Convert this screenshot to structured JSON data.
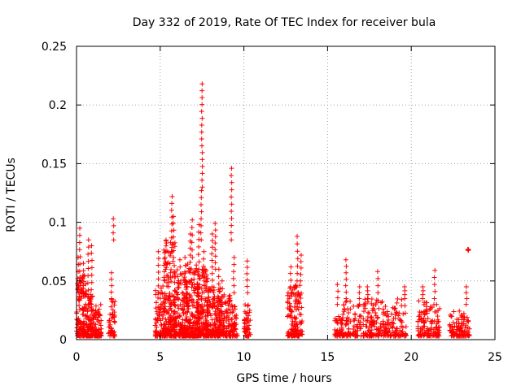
{
  "chart_data": {
    "type": "scatter",
    "title": "Day 332 of 2019, Rate Of TEC Index for receiver bula",
    "xlabel": "GPS time / hours",
    "ylabel": "ROTI / TECUs",
    "xlim": [
      0,
      25
    ],
    "ylim": [
      0,
      0.25
    ],
    "grid": true,
    "marker": "+",
    "color": "#ff0000",
    "xticks": [
      {
        "value": 0,
        "label": "0"
      },
      {
        "value": 5,
        "label": "5"
      },
      {
        "value": 10,
        "label": "10"
      },
      {
        "value": 15,
        "label": "15"
      },
      {
        "value": 20,
        "label": "20"
      },
      {
        "value": 25,
        "label": "25"
      }
    ],
    "yticks": [
      {
        "value": 0,
        "label": "0"
      },
      {
        "value": 0.05,
        "label": "0.05"
      },
      {
        "value": 0.1,
        "label": "0.1"
      },
      {
        "value": 0.15,
        "label": "0.15"
      },
      {
        "value": 0.2,
        "label": "0.2"
      },
      {
        "value": 0.25,
        "label": "0.25"
      }
    ],
    "clusters": [
      {
        "x0": 0.0,
        "x1": 0.6,
        "ymax": 0.055,
        "n": 130
      },
      {
        "x0": 0.55,
        "x1": 1.0,
        "ymax": 0.04,
        "n": 90
      },
      {
        "x0": 1.0,
        "x1": 1.5,
        "ymax": 0.03,
        "n": 70
      },
      {
        "x0": 1.9,
        "x1": 2.3,
        "ymax": 0.035,
        "n": 45
      },
      {
        "x0": 4.7,
        "x1": 5.3,
        "ymax": 0.05,
        "n": 90
      },
      {
        "x0": 5.2,
        "x1": 5.9,
        "ymax": 0.09,
        "n": 170
      },
      {
        "x0": 5.8,
        "x1": 6.6,
        "ymax": 0.06,
        "n": 170
      },
      {
        "x0": 6.5,
        "x1": 7.3,
        "ymax": 0.065,
        "n": 180
      },
      {
        "x0": 7.2,
        "x1": 7.9,
        "ymax": 0.06,
        "n": 170
      },
      {
        "x0": 7.8,
        "x1": 8.6,
        "ymax": 0.045,
        "n": 150
      },
      {
        "x0": 8.5,
        "x1": 9.2,
        "ymax": 0.04,
        "n": 110
      },
      {
        "x0": 9.2,
        "x1": 9.6,
        "ymax": 0.03,
        "n": 50
      },
      {
        "x0": 10.0,
        "x1": 10.4,
        "ymax": 0.03,
        "n": 45
      },
      {
        "x0": 12.6,
        "x1": 13.1,
        "ymax": 0.045,
        "n": 75
      },
      {
        "x0": 13.0,
        "x1": 13.5,
        "ymax": 0.05,
        "n": 70
      },
      {
        "x0": 15.4,
        "x1": 15.9,
        "ymax": 0.02,
        "n": 35
      },
      {
        "x0": 15.8,
        "x1": 16.4,
        "ymax": 0.035,
        "n": 50
      },
      {
        "x0": 16.5,
        "x1": 17.0,
        "ymax": 0.03,
        "n": 40
      },
      {
        "x0": 17.1,
        "x1": 17.7,
        "ymax": 0.035,
        "n": 55
      },
      {
        "x0": 17.6,
        "x1": 18.4,
        "ymax": 0.035,
        "n": 60
      },
      {
        "x0": 18.4,
        "x1": 19.0,
        "ymax": 0.03,
        "n": 50
      },
      {
        "x0": 19.0,
        "x1": 19.7,
        "ymax": 0.035,
        "n": 55
      },
      {
        "x0": 20.4,
        "x1": 21.0,
        "ymax": 0.035,
        "n": 65
      },
      {
        "x0": 21.0,
        "x1": 21.7,
        "ymax": 0.03,
        "n": 65
      },
      {
        "x0": 22.3,
        "x1": 22.9,
        "ymax": 0.025,
        "n": 55
      },
      {
        "x0": 22.9,
        "x1": 23.5,
        "ymax": 0.025,
        "n": 55
      }
    ],
    "spikes": [
      {
        "x": 0.1,
        "y0": 0.04,
        "y1": 0.07
      },
      {
        "x": 0.2,
        "y0": 0.04,
        "y1": 0.095
      },
      {
        "x": 0.4,
        "y0": 0.04,
        "y1": 0.065
      },
      {
        "x": 0.7,
        "y0": 0.03,
        "y1": 0.085
      },
      {
        "x": 0.9,
        "y0": 0.03,
        "y1": 0.08
      },
      {
        "x": 2.1,
        "y0": 0.035,
        "y1": 0.057
      },
      {
        "x": 2.2,
        "y0": 0.085,
        "y1": 0.103
      },
      {
        "x": 4.9,
        "y0": 0.04,
        "y1": 0.075
      },
      {
        "x": 5.3,
        "y0": 0.06,
        "y1": 0.075
      },
      {
        "x": 5.7,
        "y0": 0.075,
        "y1": 0.122
      },
      {
        "x": 5.8,
        "y0": 0.07,
        "y1": 0.105
      },
      {
        "x": 6.2,
        "y0": 0.05,
        "y1": 0.068
      },
      {
        "x": 6.5,
        "y0": 0.05,
        "y1": 0.07
      },
      {
        "x": 6.8,
        "y0": 0.06,
        "y1": 0.09
      },
      {
        "x": 6.9,
        "y0": 0.07,
        "y1": 0.102
      },
      {
        "x": 7.3,
        "y0": 0.06,
        "y1": 0.098
      },
      {
        "x": 7.45,
        "y0": 0.085,
        "y1": 0.127
      },
      {
        "x": 7.5,
        "y0": 0.13,
        "y1": 0.218
      },
      {
        "x": 7.6,
        "y0": 0.05,
        "y1": 0.075
      },
      {
        "x": 8.1,
        "y0": 0.045,
        "y1": 0.09
      },
      {
        "x": 8.3,
        "y0": 0.06,
        "y1": 0.099
      },
      {
        "x": 8.5,
        "y0": 0.035,
        "y1": 0.06
      },
      {
        "x": 8.7,
        "y0": 0.03,
        "y1": 0.05
      },
      {
        "x": 9.25,
        "y0": 0.085,
        "y1": 0.146
      },
      {
        "x": 9.4,
        "y0": 0.04,
        "y1": 0.07
      },
      {
        "x": 10.2,
        "y0": 0.04,
        "y1": 0.067
      },
      {
        "x": 12.8,
        "y0": 0.045,
        "y1": 0.062
      },
      {
        "x": 13.2,
        "y0": 0.05,
        "y1": 0.088
      },
      {
        "x": 13.4,
        "y0": 0.05,
        "y1": 0.072
      },
      {
        "x": 15.6,
        "y0": 0.03,
        "y1": 0.047
      },
      {
        "x": 16.1,
        "y0": 0.035,
        "y1": 0.068
      },
      {
        "x": 16.9,
        "y0": 0.03,
        "y1": 0.045
      },
      {
        "x": 17.4,
        "y0": 0.035,
        "y1": 0.045
      },
      {
        "x": 18.0,
        "y0": 0.04,
        "y1": 0.058
      },
      {
        "x": 19.6,
        "y0": 0.035,
        "y1": 0.045
      },
      {
        "x": 20.7,
        "y0": 0.035,
        "y1": 0.045
      },
      {
        "x": 21.4,
        "y0": 0.035,
        "y1": 0.059
      },
      {
        "x": 23.3,
        "y0": 0.03,
        "y1": 0.045
      },
      {
        "x": 23.4,
        "y0": 0.076,
        "y1": 0.077
      }
    ]
  }
}
